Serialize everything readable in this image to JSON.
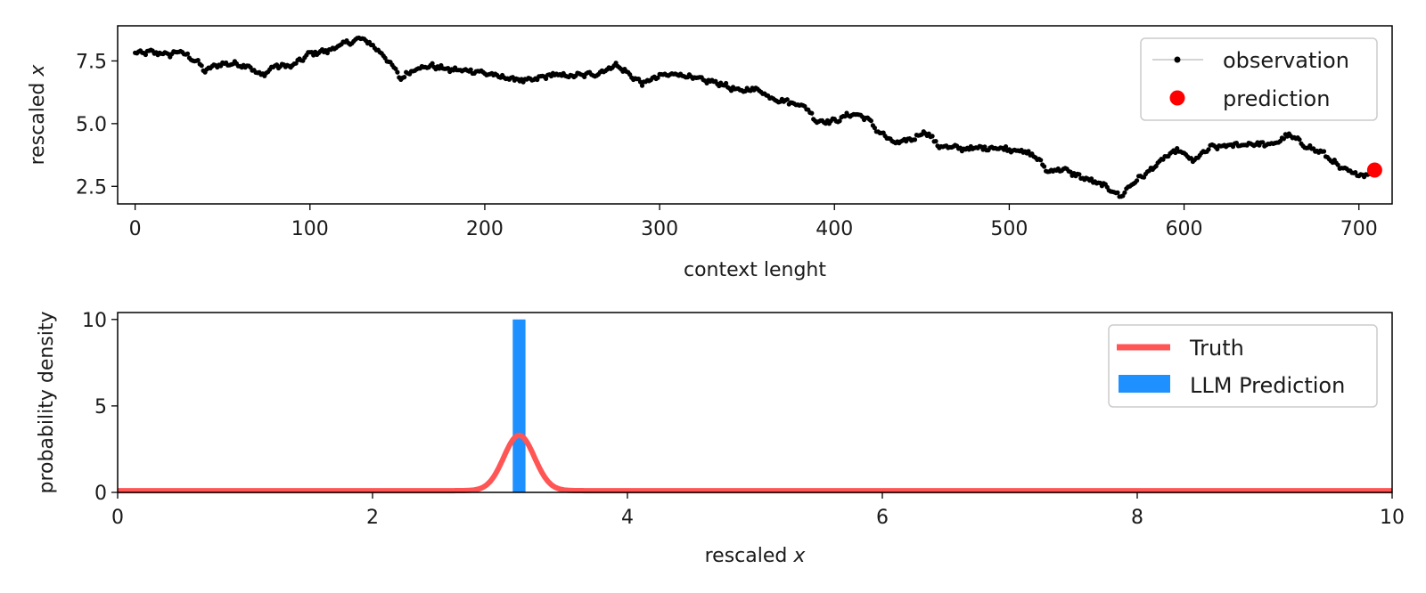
{
  "chart_data": [
    {
      "type": "scatter",
      "xlabel": "context lenght",
      "ylabel": "rescaled x",
      "ylabel_parts": [
        "rescaled ",
        "x"
      ],
      "xlim": [
        -10,
        719
      ],
      "ylim": [
        1.8,
        8.9
      ],
      "xticks": [
        0,
        100,
        200,
        300,
        400,
        500,
        600,
        700
      ],
      "yticks": [
        2.5,
        5.0,
        7.5
      ],
      "xtick_labels": [
        "0",
        "100",
        "200",
        "300",
        "400",
        "500",
        "600",
        "700"
      ],
      "ytick_labels": [
        "2.5",
        "5.0",
        "7.5"
      ],
      "legend": {
        "placement": "top-right",
        "entries": [
          "observation",
          "prediction"
        ]
      },
      "series": [
        {
          "name": "observation",
          "color": "#000000",
          "anchors": [
            [
              0,
              7.8
            ],
            [
              10,
              7.85
            ],
            [
              20,
              7.75
            ],
            [
              25,
              7.9
            ],
            [
              35,
              7.5
            ],
            [
              40,
              7.1
            ],
            [
              47,
              7.35
            ],
            [
              55,
              7.4
            ],
            [
              65,
              7.3
            ],
            [
              72,
              6.9
            ],
            [
              80,
              7.3
            ],
            [
              90,
              7.3
            ],
            [
              100,
              7.8
            ],
            [
              110,
              7.9
            ],
            [
              120,
              8.2
            ],
            [
              130,
              8.4
            ],
            [
              138,
              8.0
            ],
            [
              145,
              7.5
            ],
            [
              152,
              6.8
            ],
            [
              160,
              7.2
            ],
            [
              170,
              7.3
            ],
            [
              180,
              7.15
            ],
            [
              195,
              7.1
            ],
            [
              210,
              6.85
            ],
            [
              225,
              6.7
            ],
            [
              238,
              6.95
            ],
            [
              250,
              6.9
            ],
            [
              265,
              7.0
            ],
            [
              275,
              7.35
            ],
            [
              282,
              7.0
            ],
            [
              290,
              6.6
            ],
            [
              300,
              6.9
            ],
            [
              310,
              7.0
            ],
            [
              320,
              6.8
            ],
            [
              335,
              6.6
            ],
            [
              345,
              6.3
            ],
            [
              355,
              6.4
            ],
            [
              365,
              6.0
            ],
            [
              375,
              5.85
            ],
            [
              383,
              5.7
            ],
            [
              390,
              5.1
            ],
            [
              400,
              5.1
            ],
            [
              410,
              5.4
            ],
            [
              418,
              5.25
            ],
            [
              425,
              4.7
            ],
            [
              435,
              4.2
            ],
            [
              445,
              4.4
            ],
            [
              452,
              4.7
            ],
            [
              460,
              4.1
            ],
            [
              475,
              4.0
            ],
            [
              490,
              4.05
            ],
            [
              505,
              3.95
            ],
            [
              515,
              3.7
            ],
            [
              522,
              3.1
            ],
            [
              530,
              3.2
            ],
            [
              540,
              2.9
            ],
            [
              555,
              2.5
            ],
            [
              564,
              2.1
            ],
            [
              570,
              2.6
            ],
            [
              580,
              3.1
            ],
            [
              590,
              3.7
            ],
            [
              597,
              3.95
            ],
            [
              605,
              3.5
            ],
            [
              615,
              4.05
            ],
            [
              630,
              4.15
            ],
            [
              640,
              4.2
            ],
            [
              650,
              4.15
            ],
            [
              660,
              4.55
            ],
            [
              670,
              4.1
            ],
            [
              680,
              3.8
            ],
            [
              690,
              3.2
            ],
            [
              700,
              2.95
            ],
            [
              708,
              3.05
            ]
          ]
        },
        {
          "name": "prediction",
          "color": "#ff0000",
          "points": [
            [
              709,
              3.15
            ]
          ]
        }
      ]
    },
    {
      "type": "line",
      "xlabel": "rescaled x",
      "xlabel_parts": [
        "rescaled ",
        "x"
      ],
      "ylabel": "probability density",
      "xlim": [
        0,
        10
      ],
      "ylim": [
        0,
        10.4
      ],
      "xticks": [
        0,
        2,
        4,
        6,
        8,
        10
      ],
      "yticks": [
        0,
        5,
        10
      ],
      "xtick_labels": [
        "0",
        "2",
        "4",
        "6",
        "8",
        "10"
      ],
      "ytick_labels": [
        "0",
        "5",
        "10"
      ],
      "legend": {
        "placement": "top-right",
        "entries": [
          "Truth",
          "LLM Prediction"
        ]
      },
      "series": [
        {
          "name": "Truth",
          "color": "#ff5555",
          "distribution": {
            "shape": "gaussian",
            "mean": 3.15,
            "std": 0.12,
            "peak": 3.3,
            "floor": 0.1
          }
        },
        {
          "name": "LLM Prediction",
          "color": "#1e90ff",
          "bars": [
            {
              "x0": 3.1,
              "x1": 3.2,
              "value": 10.0
            }
          ]
        }
      ]
    }
  ]
}
